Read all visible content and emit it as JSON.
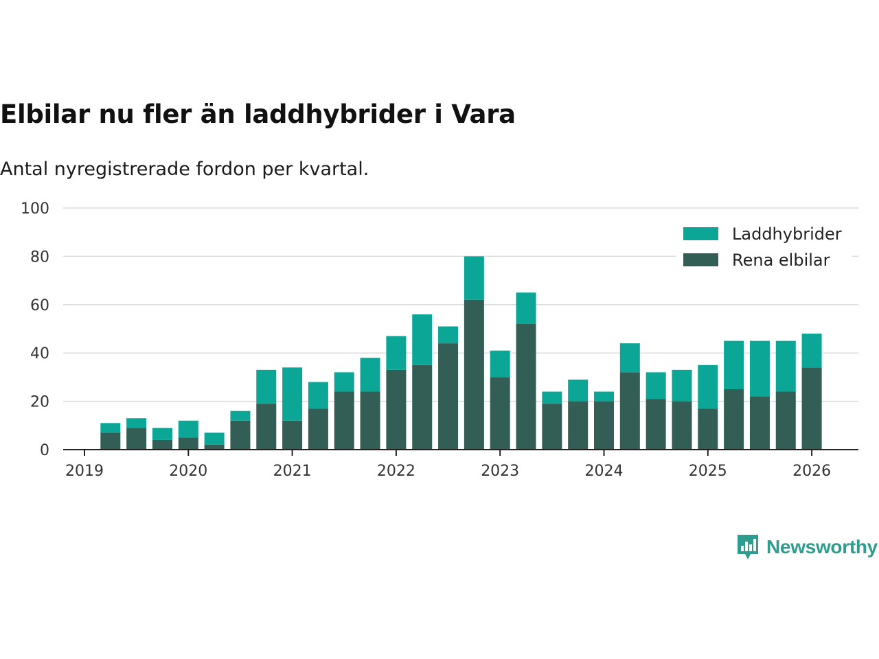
{
  "title": "Elbilar nu fler än laddhybrider i Vara",
  "subtitle": "Antal nyregistrerade fordon per kvartal.",
  "brand": "Newsworthy",
  "colors": {
    "plug_in": "#0ca697",
    "electric": "#325e56",
    "grid": "#dcdcdc",
    "axis": "#222222",
    "text": "#333333"
  },
  "chart_data": {
    "type": "bar",
    "stacked": true,
    "title": "Elbilar nu fler än laddhybrider i Vara",
    "subtitle": "Antal nyregistrerade fordon per kvartal.",
    "xlabel": "",
    "ylabel": "",
    "ylim": [
      0,
      100
    ],
    "yticks": [
      0,
      20,
      40,
      60,
      80,
      100
    ],
    "xticks": [
      "2019",
      "2020",
      "2021",
      "2022",
      "2023",
      "2024",
      "2025",
      "2026"
    ],
    "legend_position": "top-right",
    "grid": true,
    "categories": [
      "2019 Q2",
      "2019 Q3",
      "2019 Q4",
      "2020 Q1",
      "2020 Q2",
      "2020 Q3",
      "2020 Q4",
      "2021 Q1",
      "2021 Q2",
      "2021 Q3",
      "2021 Q4",
      "2022 Q1",
      "2022 Q2",
      "2022 Q3",
      "2022 Q4",
      "2023 Q1",
      "2023 Q2",
      "2023 Q3",
      "2023 Q4",
      "2024 Q1",
      "2024 Q2",
      "2024 Q3",
      "2024 Q4",
      "2025 Q1",
      "2025 Q2",
      "2025 Q3",
      "2025 Q4",
      "2026 Q1"
    ],
    "series": [
      {
        "name": "Rena elbilar",
        "values": [
          7,
          9,
          4,
          5,
          2,
          12,
          19,
          12,
          17,
          24,
          24,
          33,
          35,
          44,
          62,
          30,
          52,
          19,
          20,
          20,
          32,
          21,
          20,
          17,
          25,
          22,
          24,
          34
        ]
      },
      {
        "name": "Laddhybrider",
        "values": [
          4,
          4,
          5,
          7,
          5,
          4,
          14,
          22,
          11,
          8,
          14,
          14,
          21,
          7,
          18,
          11,
          13,
          5,
          9,
          4,
          12,
          11,
          13,
          18,
          20,
          23,
          21,
          14
        ]
      }
    ],
    "legend": [
      "Laddhybrider",
      "Rena elbilar"
    ]
  }
}
